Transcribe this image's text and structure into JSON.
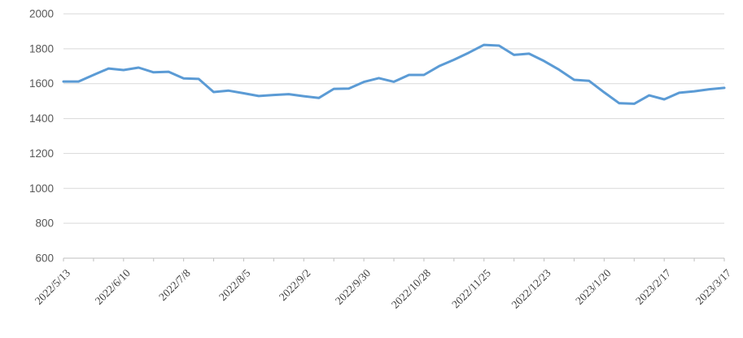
{
  "chart_data": {
    "type": "line",
    "title": "",
    "xlabel": "",
    "ylabel": "",
    "legend": "none",
    "grid": "horizontal",
    "ylim": [
      600,
      2000
    ],
    "ytick_step": 200,
    "y_tick_labels": [
      "600",
      "800",
      "1000",
      "1200",
      "1400",
      "1600",
      "1800",
      "2000"
    ],
    "x_tick_labels": [
      "2022/5/13",
      "2022/6/10",
      "2022/7/8",
      "2022/8/5",
      "2022/9/2",
      "2022/9/30",
      "2022/10/28",
      "2022/11/25",
      "2022/12/23",
      "2023/1/20",
      "2023/2/17",
      "2023/3/17"
    ],
    "points_per_label": 4,
    "minor_ticks_every_points": 2,
    "series": [
      {
        "name": "",
        "values": [
          1612,
          1612,
          1650,
          1687,
          1678,
          1692,
          1665,
          1668,
          1630,
          1627,
          1552,
          1560,
          1545,
          1529,
          1535,
          1540,
          1528,
          1518,
          1570,
          1572,
          1610,
          1632,
          1611,
          1650,
          1650,
          1700,
          1737,
          1778,
          1822,
          1818,
          1765,
          1772,
          1730,
          1680,
          1622,
          1616,
          1550,
          1488,
          1485,
          1533,
          1510,
          1548,
          1556,
          1568,
          1576
        ]
      }
    ],
    "colors": {
      "line": "#5B9BD5",
      "gridline": "#D9D9D9",
      "axis": "#BFBFBF",
      "y_label": "#595959",
      "x_label": "#3F3F3F"
    }
  }
}
